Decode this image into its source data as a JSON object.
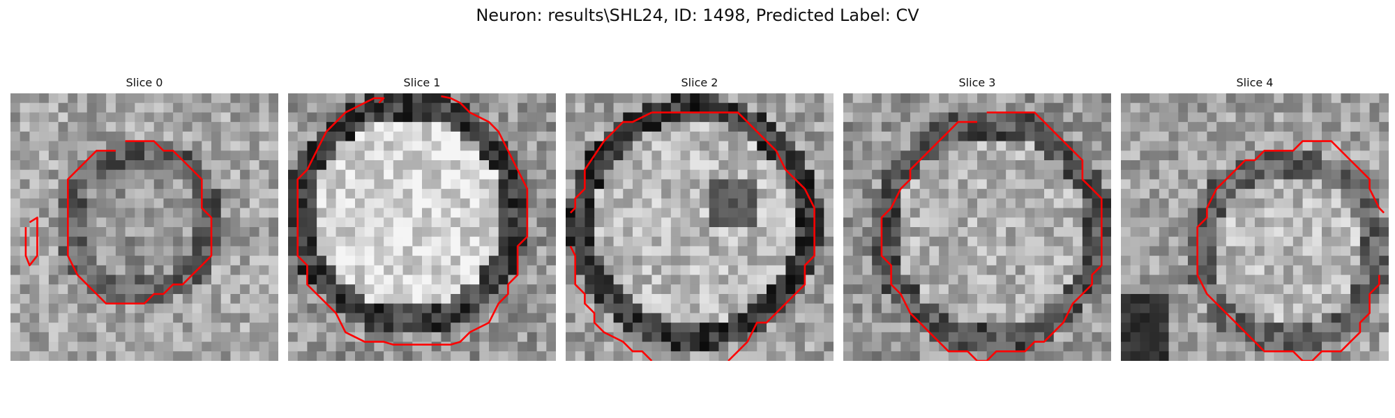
{
  "figure": {
    "title": "Neuron: results\\SHL24, ID: 1498, Predicted Label: CV"
  },
  "colors": {
    "contour": "#ff0000",
    "background": "#ffffff"
  },
  "panels": [
    {
      "title": "Slice 0",
      "grid": 28,
      "contours": [
        [
          [
            12,
            5
          ],
          [
            15,
            5
          ],
          [
            16,
            6
          ],
          [
            17,
            6
          ],
          [
            18,
            7
          ],
          [
            19,
            8
          ],
          [
            20,
            9
          ],
          [
            20,
            12
          ],
          [
            21,
            13
          ],
          [
            21,
            17
          ],
          [
            20,
            18
          ],
          [
            19,
            19
          ],
          [
            18,
            20
          ],
          [
            17,
            20
          ],
          [
            16,
            21
          ],
          [
            15,
            21
          ],
          [
            14,
            22
          ],
          [
            10,
            22
          ],
          [
            9,
            21
          ],
          [
            8,
            20
          ],
          [
            7,
            19
          ],
          [
            6,
            17
          ],
          [
            6,
            9
          ],
          [
            7,
            8
          ],
          [
            8,
            7
          ],
          [
            9,
            6
          ],
          [
            11,
            6
          ]
        ],
        [
          [
            2,
            13.5
          ],
          [
            2.8,
            13
          ],
          [
            2.8,
            17
          ],
          [
            2,
            18
          ],
          [
            1.6,
            17
          ],
          [
            1.6,
            14
          ]
        ]
      ]
    },
    {
      "title": "Slice 1",
      "grid": 28,
      "contours": [
        [
          [
            8,
            1
          ],
          [
            9,
            0.5
          ],
          [
            10,
            0.5
          ],
          [
            9.5,
            1
          ]
        ],
        [
          [
            8,
            1
          ],
          [
            6,
            2
          ],
          [
            4,
            4
          ],
          [
            3,
            6
          ],
          [
            2,
            8
          ],
          [
            1,
            9
          ],
          [
            1,
            17
          ],
          [
            2,
            18
          ],
          [
            2,
            20
          ],
          [
            3,
            21
          ],
          [
            4,
            22
          ],
          [
            5,
            23
          ],
          [
            6,
            25
          ],
          [
            8,
            26
          ],
          [
            10,
            26
          ],
          [
            11,
            26.3
          ],
          [
            17,
            26.3
          ],
          [
            18,
            26
          ],
          [
            19,
            25
          ],
          [
            21,
            24
          ],
          [
            22,
            22
          ],
          [
            23,
            21
          ],
          [
            23,
            20
          ],
          [
            24,
            19
          ],
          [
            24,
            16
          ],
          [
            25,
            15
          ],
          [
            25,
            10
          ],
          [
            24,
            8
          ],
          [
            23,
            6
          ],
          [
            22,
            4
          ],
          [
            21,
            3
          ],
          [
            19,
            2
          ],
          [
            18,
            1
          ],
          [
            17,
            0.5
          ],
          [
            16,
            0.3
          ]
        ]
      ]
    },
    {
      "title": "Slice 2",
      "grid": 28,
      "contours": [
        [
          [
            9,
            2
          ],
          [
            18,
            2
          ],
          [
            19,
            3
          ],
          [
            20,
            4
          ],
          [
            21,
            5
          ],
          [
            22,
            6
          ],
          [
            23,
            8
          ],
          [
            25,
            10
          ],
          [
            26,
            12
          ],
          [
            26,
            17
          ],
          [
            25,
            18
          ],
          [
            25,
            20
          ],
          [
            24,
            21
          ],
          [
            23,
            22
          ],
          [
            22,
            23
          ],
          [
            21,
            24
          ],
          [
            20,
            24
          ],
          [
            19,
            26
          ],
          [
            18,
            27
          ],
          [
            17,
            28
          ]
        ],
        [
          [
            9,
            2
          ],
          [
            7,
            3
          ],
          [
            6,
            3
          ],
          [
            5,
            4
          ],
          [
            4,
            5
          ],
          [
            2,
            8
          ],
          [
            2,
            10
          ],
          [
            1,
            11
          ],
          [
            1,
            12
          ],
          [
            0.5,
            12.5
          ]
        ],
        [
          [
            0.5,
            16
          ],
          [
            1,
            17
          ],
          [
            1,
            20
          ],
          [
            2,
            21
          ],
          [
            2,
            22
          ],
          [
            3,
            23
          ],
          [
            3,
            24
          ],
          [
            4,
            25
          ],
          [
            6,
            26
          ],
          [
            7,
            27
          ],
          [
            8,
            27
          ],
          [
            9,
            28
          ]
        ]
      ]
    },
    {
      "title": "Slice 3",
      "grid": 28,
      "contours": [
        [
          [
            15,
            2
          ],
          [
            20,
            2
          ],
          [
            21,
            3
          ],
          [
            22,
            4
          ],
          [
            23,
            5
          ],
          [
            24,
            6
          ],
          [
            25,
            7
          ],
          [
            25,
            9
          ],
          [
            26,
            10
          ],
          [
            27,
            11
          ],
          [
            27,
            18
          ],
          [
            26,
            19
          ],
          [
            26,
            20
          ],
          [
            25,
            21
          ],
          [
            24,
            22
          ],
          [
            23,
            24
          ],
          [
            21,
            26
          ],
          [
            20,
            26
          ],
          [
            19,
            27
          ],
          [
            18,
            27
          ],
          [
            16,
            27
          ],
          [
            15,
            28
          ],
          [
            14,
            28
          ],
          [
            13,
            27
          ],
          [
            11,
            27
          ],
          [
            10,
            26
          ],
          [
            9,
            25
          ],
          [
            8,
            24
          ],
          [
            7,
            23
          ],
          [
            6,
            21
          ],
          [
            5,
            20
          ],
          [
            5,
            18
          ],
          [
            4,
            17
          ],
          [
            4,
            13
          ],
          [
            5,
            12
          ],
          [
            6,
            10
          ],
          [
            7,
            9
          ],
          [
            7,
            8
          ],
          [
            8,
            7
          ],
          [
            9,
            6
          ],
          [
            10,
            5
          ],
          [
            11,
            4
          ],
          [
            12,
            3
          ],
          [
            14,
            3
          ]
        ]
      ]
    },
    {
      "title": "Slice 4",
      "grid": 28,
      "contours": [
        [
          [
            21,
            5
          ],
          [
            22,
            5
          ],
          [
            23,
            6
          ],
          [
            24,
            7
          ],
          [
            25,
            8
          ],
          [
            26,
            9
          ],
          [
            26,
            10
          ],
          [
            27,
            12
          ],
          [
            27.5,
            12.5
          ]
        ],
        [
          [
            21,
            5
          ],
          [
            19,
            5
          ],
          [
            18,
            6
          ],
          [
            15,
            6
          ],
          [
            14,
            7
          ],
          [
            13,
            7
          ],
          [
            12,
            8
          ],
          [
            11,
            9
          ],
          [
            10,
            10
          ],
          [
            9,
            12
          ],
          [
            9,
            13
          ],
          [
            8,
            14
          ],
          [
            8,
            19
          ],
          [
            9,
            21
          ],
          [
            10,
            22
          ],
          [
            11,
            23
          ],
          [
            12,
            24
          ],
          [
            13,
            25
          ],
          [
            14,
            26
          ],
          [
            15,
            27
          ],
          [
            18,
            27
          ],
          [
            19,
            28
          ],
          [
            20,
            28
          ],
          [
            21,
            27
          ],
          [
            23,
            27
          ],
          [
            24,
            26
          ],
          [
            25,
            25
          ],
          [
            25,
            24
          ],
          [
            26,
            23
          ],
          [
            26,
            21
          ],
          [
            27,
            20
          ],
          [
            27,
            19
          ]
        ]
      ]
    }
  ]
}
